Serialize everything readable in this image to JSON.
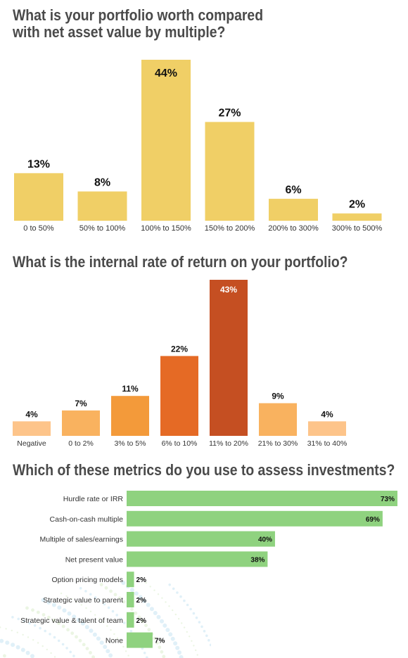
{
  "colors": {
    "heading": "#4a4a4a",
    "portfolio_bar": "#f0cf66",
    "metric_bar": "#8fd27f",
    "irr_scale": [
      "#fdc48a",
      "#f39a3a",
      "#e56a25",
      "#c54f22"
    ]
  },
  "charts": {
    "portfolio_worth": {
      "title_line1": "What is your portfolio worth compared",
      "title_line2": "with net asset value by multiple?"
    },
    "irr": {
      "title": "What is the internal rate of return on your portfolio?"
    },
    "metrics": {
      "title": "Which of these metrics do you use to assess investments?"
    }
  },
  "chart_data": [
    {
      "type": "bar",
      "orientation": "vertical",
      "title": "What is your portfolio worth compared with net asset value by multiple?",
      "categories": [
        "0 to 50%",
        "50% to 100%",
        "100% to 150%",
        "150% to 200%",
        "200% to 300%",
        "300% to 500%"
      ],
      "values": [
        13,
        8,
        44,
        27,
        6,
        2
      ],
      "labels": [
        "13%",
        "8%",
        "44%",
        "27%",
        "6%",
        "2%"
      ],
      "unit": "%",
      "ylim": [
        0,
        44
      ],
      "grid": false,
      "colors": [
        "#f0cf66",
        "#f0cf66",
        "#f0cf66",
        "#f0cf66",
        "#f0cf66",
        "#f0cf66"
      ]
    },
    {
      "type": "bar",
      "orientation": "vertical",
      "title": "What is the internal rate of return on your portfolio?",
      "categories": [
        "Negative",
        "0 to 2%",
        "3% to 5%",
        "6% to 10%",
        "11% to 20%",
        "21% to 30%",
        "31% to 40%"
      ],
      "values": [
        4,
        7,
        11,
        22,
        43,
        9,
        4
      ],
      "labels": [
        "4%",
        "7%",
        "11%",
        "22%",
        "43%",
        "9%",
        "4%"
      ],
      "unit": "%",
      "ylim": [
        0,
        43
      ],
      "grid": false,
      "colors": [
        "#fdc48a",
        "#f9b25f",
        "#f39a3a",
        "#e56a25",
        "#c54f22",
        "#f9b25f",
        "#fdc48a"
      ]
    },
    {
      "type": "bar",
      "orientation": "horizontal",
      "title": "Which of these metrics do you use to assess investments?",
      "categories": [
        "Hurdle rate or IRR",
        "Cash-on-cash multiple",
        "Multiple of sales/earnings",
        "Net present value",
        "Option pricing models",
        "Strategic value to parent",
        "Strategic value & talent of team",
        "None"
      ],
      "values": [
        73,
        69,
        40,
        38,
        2,
        2,
        2,
        7
      ],
      "labels": [
        "73%",
        "69%",
        "40%",
        "38%",
        "2%",
        "2%",
        "2%",
        "7%"
      ],
      "unit": "%",
      "xlim": [
        0,
        73
      ],
      "grid": false,
      "colors": [
        "#8fd27f",
        "#8fd27f",
        "#8fd27f",
        "#8fd27f",
        "#8fd27f",
        "#8fd27f",
        "#8fd27f",
        "#8fd27f"
      ]
    }
  ]
}
